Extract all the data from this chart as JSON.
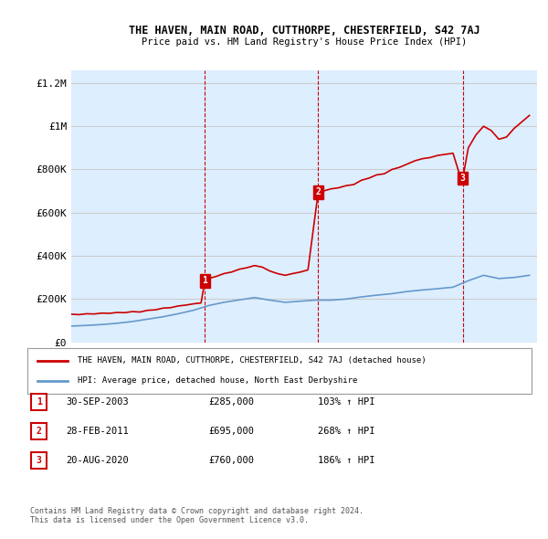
{
  "title": "THE HAVEN, MAIN ROAD, CUTTHORPE, CHESTERFIELD, S42 7AJ",
  "subtitle": "Price paid vs. HM Land Registry's House Price Index (HPI)",
  "ylabel_ticks": [
    "£0",
    "£200K",
    "£400K",
    "£600K",
    "£800K",
    "£1M",
    "£1.2M"
  ],
  "ylabel_values": [
    0,
    200000,
    400000,
    600000,
    800000,
    1000000,
    1200000
  ],
  "ylim": [
    0,
    1260000
  ],
  "xmin": 1995,
  "xmax": 2025.5,
  "sale_dates": [
    2003.75,
    2011.17,
    2020.64
  ],
  "sale_prices": [
    285000,
    695000,
    760000
  ],
  "sale_labels": [
    "1",
    "2",
    "3"
  ],
  "red_line_color": "#cc0000",
  "blue_line_color": "#6699cc",
  "dashed_line_color": "#cc0000",
  "grid_color": "#cccccc",
  "bg_color": "#ddeeff",
  "plot_bg": "#ffffff",
  "legend_entries": [
    "THE HAVEN, MAIN ROAD, CUTTHORPE, CHESTERFIELD, S42 7AJ (detached house)",
    "HPI: Average price, detached house, North East Derbyshire"
  ],
  "table_rows": [
    [
      "1",
      "30-SEP-2003",
      "£285,000",
      "103% ↑ HPI"
    ],
    [
      "2",
      "28-FEB-2011",
      "£695,000",
      "268% ↑ HPI"
    ],
    [
      "3",
      "20-AUG-2020",
      "£760,000",
      "186% ↑ HPI"
    ]
  ],
  "footnote": "Contains HM Land Registry data © Crown copyright and database right 2024.\nThis data is licensed under the Open Government Licence v3.0.",
  "hpi_years": [
    1995,
    1996,
    1997,
    1998,
    1999,
    2000,
    2001,
    2002,
    2003,
    2004,
    2005,
    2006,
    2007,
    2008,
    2009,
    2010,
    2011,
    2012,
    2013,
    2014,
    2015,
    2016,
    2017,
    2018,
    2019,
    2020,
    2021,
    2022,
    2023,
    2024,
    2025
  ],
  "hpi_values": [
    75000,
    78000,
    82000,
    88000,
    96000,
    107000,
    118000,
    132000,
    148000,
    170000,
    185000,
    196000,
    207000,
    195000,
    185000,
    190000,
    195000,
    195000,
    200000,
    210000,
    218000,
    225000,
    235000,
    242000,
    248000,
    255000,
    285000,
    310000,
    295000,
    300000,
    310000
  ],
  "prop_years_before": [
    1995,
    1995.5,
    1996,
    1996.5,
    1997,
    1997.5,
    1998,
    1998.5,
    1999,
    1999.5,
    2000,
    2000.5,
    2001,
    2001.5,
    2002,
    2002.5,
    2003,
    2003.5,
    2003.75
  ],
  "prop_values_before": [
    130000,
    128000,
    132000,
    131000,
    135000,
    134000,
    138000,
    137000,
    142000,
    140000,
    148000,
    150000,
    158000,
    160000,
    168000,
    172000,
    178000,
    182000,
    285000
  ],
  "prop_years_seg1": [
    2003.75,
    2004,
    2004.5,
    2005,
    2005.5,
    2006,
    2006.5,
    2007,
    2007.5,
    2008,
    2008.5,
    2009,
    2009.5,
    2010,
    2010.5,
    2011.17
  ],
  "prop_values_seg1": [
    285000,
    295000,
    305000,
    318000,
    325000,
    338000,
    345000,
    355000,
    348000,
    330000,
    318000,
    310000,
    318000,
    325000,
    335000,
    695000
  ],
  "prop_years_seg2": [
    2011.17,
    2011.5,
    2012,
    2012.5,
    2013,
    2013.5,
    2014,
    2014.5,
    2015,
    2015.5,
    2016,
    2016.5,
    2017,
    2017.5,
    2018,
    2018.5,
    2019,
    2019.5,
    2020,
    2020.5,
    2020.64
  ],
  "prop_values_seg2": [
    695000,
    700000,
    710000,
    715000,
    725000,
    730000,
    750000,
    760000,
    775000,
    780000,
    800000,
    810000,
    825000,
    840000,
    850000,
    855000,
    865000,
    870000,
    875000,
    760000,
    760000
  ],
  "prop_years_seg3": [
    2020.64,
    2021,
    2021.5,
    2022,
    2022.5,
    2023,
    2023.5,
    2024,
    2024.5,
    2025
  ],
  "prop_values_seg3": [
    760000,
    900000,
    960000,
    1000000,
    980000,
    940000,
    950000,
    990000,
    1020000,
    1050000
  ]
}
